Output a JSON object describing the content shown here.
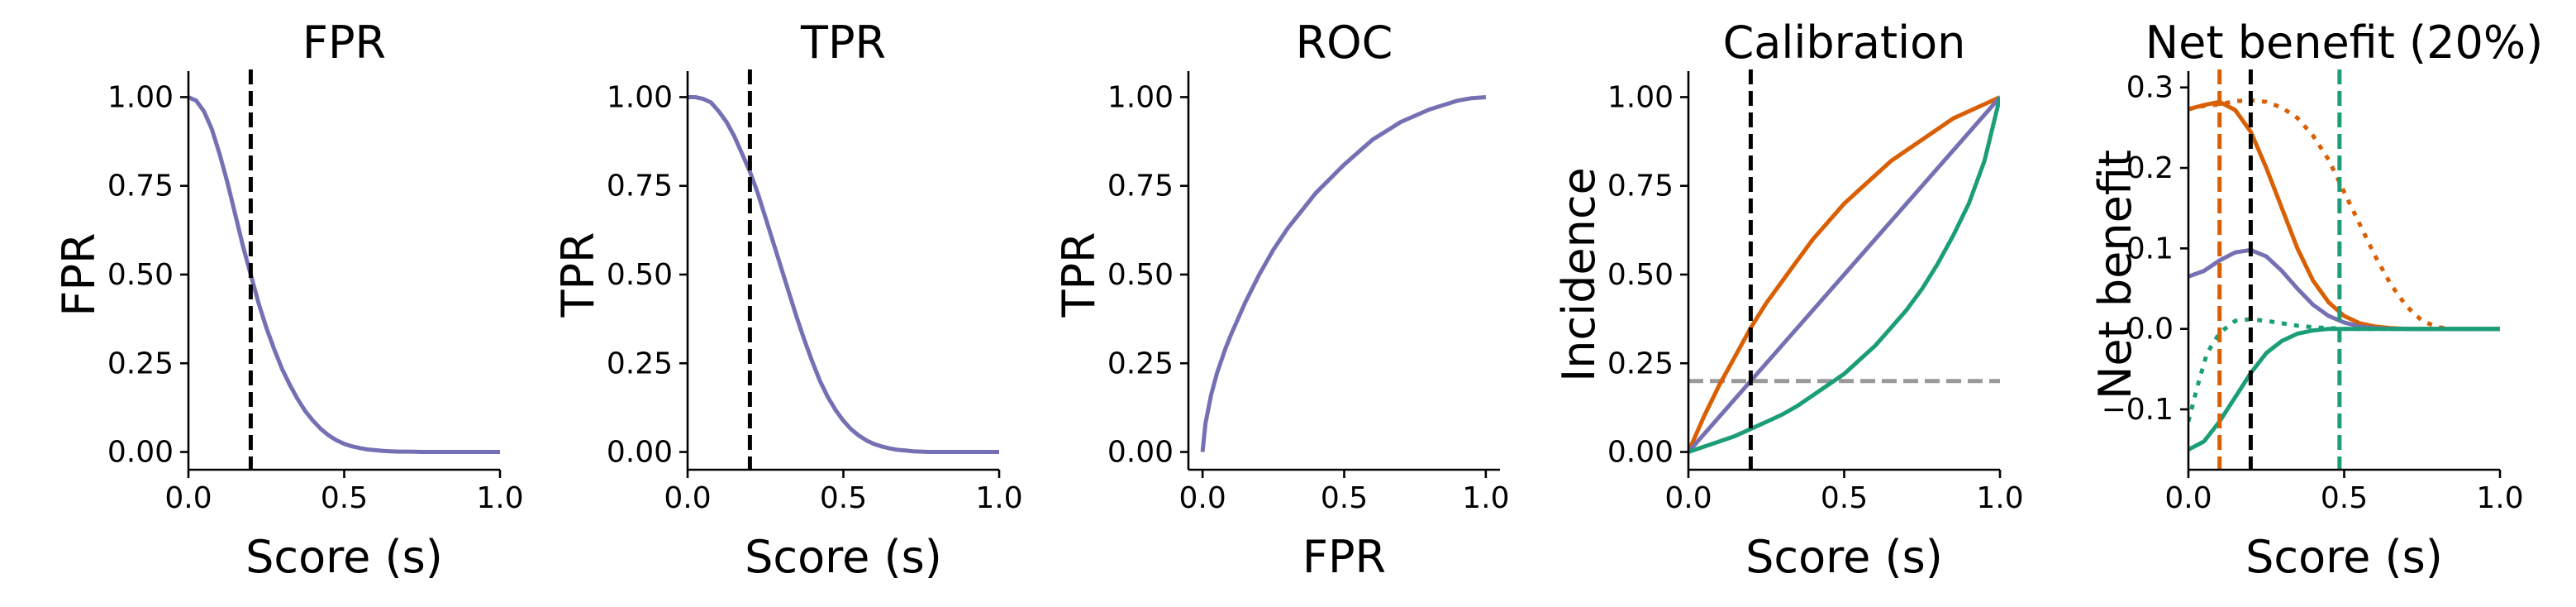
{
  "figure": {
    "colors": {
      "purple": "#7570b3",
      "orange": "#d95f02",
      "green": "#1b9e77",
      "black": "#000000",
      "gray": "#999999"
    }
  },
  "chart_data": [
    {
      "type": "line",
      "title": "FPR",
      "xlabel": "Score (s)",
      "ylabel": "FPR",
      "xlim": [
        0,
        1
      ],
      "ylim": [
        -0.05,
        1.05
      ],
      "xticks": [
        0,
        0.5,
        1
      ],
      "xtick_labels": [
        "0.0",
        "0.5",
        "1.0"
      ],
      "yticks": [
        0,
        0.25,
        0.5,
        0.75,
        1
      ],
      "ytick_labels": [
        "0.00",
        "0.25",
        "0.50",
        "0.75",
        "1.00"
      ],
      "series": [
        {
          "color": "#7570b3",
          "style": "solid",
          "x": [
            0,
            0.025,
            0.05,
            0.075,
            0.1,
            0.125,
            0.15,
            0.175,
            0.2,
            0.225,
            0.25,
            0.275,
            0.3,
            0.325,
            0.35,
            0.375,
            0.4,
            0.425,
            0.45,
            0.475,
            0.5,
            0.525,
            0.55,
            0.575,
            0.6,
            0.625,
            0.65,
            0.675,
            0.7,
            0.725,
            0.75,
            0.775,
            0.8,
            0.825,
            0.85,
            0.875,
            0.9,
            0.925,
            0.95,
            0.975,
            1
          ],
          "y": [
            1.0,
            0.99,
            0.96,
            0.91,
            0.84,
            0.76,
            0.67,
            0.58,
            0.5,
            0.42,
            0.35,
            0.29,
            0.235,
            0.19,
            0.15,
            0.115,
            0.088,
            0.065,
            0.047,
            0.033,
            0.023,
            0.016,
            0.011,
            0.007,
            0.005,
            0.003,
            0.002,
            0.001,
            0.001,
            0.0005,
            0,
            0,
            0,
            0,
            0,
            0,
            0,
            0,
            0,
            0,
            0
          ]
        }
      ],
      "vlines": [
        {
          "x": 0.2,
          "color": "#000000",
          "style": "dashed"
        }
      ]
    },
    {
      "type": "line",
      "title": "TPR",
      "xlabel": "Score (s)",
      "ylabel": "TPR",
      "xlim": [
        0,
        1
      ],
      "ylim": [
        -0.05,
        1.05
      ],
      "xticks": [
        0,
        0.5,
        1
      ],
      "xtick_labels": [
        "0.0",
        "0.5",
        "1.0"
      ],
      "yticks": [
        0,
        0.25,
        0.5,
        0.75,
        1
      ],
      "ytick_labels": [
        "0.00",
        "0.25",
        "0.50",
        "0.75",
        "1.00"
      ],
      "series": [
        {
          "color": "#7570b3",
          "style": "solid",
          "x": [
            0,
            0.025,
            0.05,
            0.075,
            0.1,
            0.125,
            0.15,
            0.175,
            0.2,
            0.225,
            0.25,
            0.275,
            0.3,
            0.325,
            0.35,
            0.375,
            0.4,
            0.425,
            0.45,
            0.475,
            0.5,
            0.525,
            0.55,
            0.575,
            0.6,
            0.625,
            0.65,
            0.675,
            0.7,
            0.725,
            0.75,
            0.775,
            0.8,
            0.825,
            0.85,
            0.875,
            0.9,
            0.925,
            0.95,
            0.975,
            1
          ],
          "y": [
            1.0,
            1.0,
            0.995,
            0.985,
            0.96,
            0.93,
            0.89,
            0.84,
            0.79,
            0.73,
            0.66,
            0.59,
            0.52,
            0.45,
            0.38,
            0.315,
            0.255,
            0.2,
            0.155,
            0.118,
            0.088,
            0.064,
            0.046,
            0.032,
            0.022,
            0.015,
            0.01,
            0.006,
            0.004,
            0.002,
            0.001,
            0,
            0,
            0,
            0,
            0,
            0,
            0,
            0,
            0,
            0
          ]
        }
      ],
      "vlines": [
        {
          "x": 0.2,
          "color": "#000000",
          "style": "dashed"
        }
      ]
    },
    {
      "type": "line",
      "title": "ROC",
      "xlabel": "FPR",
      "ylabel": "TPR",
      "xlim": [
        -0.05,
        1.05
      ],
      "ylim": [
        -0.05,
        1.05
      ],
      "xticks": [
        0,
        0.5,
        1
      ],
      "xtick_labels": [
        "0.0",
        "0.5",
        "1.0"
      ],
      "yticks": [
        0,
        0.25,
        0.5,
        0.75,
        1
      ],
      "ytick_labels": [
        "0.00",
        "0.25",
        "0.50",
        "0.75",
        "1.00"
      ],
      "series": [
        {
          "color": "#7570b3",
          "style": "solid",
          "x": [
            0,
            0.01,
            0.03,
            0.05,
            0.08,
            0.1,
            0.15,
            0.2,
            0.25,
            0.3,
            0.35,
            0.4,
            0.5,
            0.6,
            0.7,
            0.8,
            0.9,
            0.95,
            1.0
          ],
          "y": [
            0,
            0.08,
            0.16,
            0.22,
            0.29,
            0.33,
            0.42,
            0.5,
            0.57,
            0.63,
            0.68,
            0.73,
            0.81,
            0.88,
            0.93,
            0.965,
            0.99,
            0.997,
            1.0
          ]
        }
      ],
      "vlines": []
    },
    {
      "type": "line",
      "title": "Calibration",
      "xlabel": "Score (s)",
      "ylabel": "Incidence",
      "xlim": [
        0,
        1
      ],
      "ylim": [
        -0.05,
        1.05
      ],
      "xticks": [
        0,
        0.5,
        1
      ],
      "xtick_labels": [
        "0.0",
        "0.5",
        "1.0"
      ],
      "yticks": [
        0,
        0.25,
        0.5,
        0.75,
        1
      ],
      "ytick_labels": [
        "0.00",
        "0.25",
        "0.50",
        "0.75",
        "1.00"
      ],
      "series": [
        {
          "color": "#d95f02",
          "style": "solid",
          "x": [
            0,
            0.05,
            0.1,
            0.15,
            0.2,
            0.25,
            0.3,
            0.35,
            0.4,
            0.45,
            0.5,
            0.55,
            0.6,
            0.65,
            0.7,
            0.75,
            0.8,
            0.85,
            0.9,
            0.95,
            1
          ],
          "y": [
            0,
            0.1,
            0.19,
            0.27,
            0.35,
            0.42,
            0.48,
            0.54,
            0.6,
            0.65,
            0.7,
            0.74,
            0.78,
            0.82,
            0.85,
            0.88,
            0.91,
            0.94,
            0.96,
            0.98,
            1.0
          ]
        },
        {
          "color": "#7570b3",
          "style": "solid",
          "x": [
            0,
            1
          ],
          "y": [
            0,
            1
          ]
        },
        {
          "color": "#1b9e77",
          "style": "solid",
          "x": [
            0,
            0.05,
            0.1,
            0.15,
            0.2,
            0.25,
            0.3,
            0.35,
            0.4,
            0.45,
            0.5,
            0.55,
            0.6,
            0.65,
            0.7,
            0.75,
            0.8,
            0.85,
            0.9,
            0.95,
            1
          ],
          "y": [
            0,
            0.015,
            0.03,
            0.045,
            0.065,
            0.085,
            0.105,
            0.13,
            0.16,
            0.19,
            0.22,
            0.26,
            0.3,
            0.35,
            0.4,
            0.46,
            0.53,
            0.61,
            0.7,
            0.82,
            1.0
          ]
        }
      ],
      "hlines": [
        {
          "y": 0.2,
          "color": "#999999",
          "style": "dashed"
        }
      ],
      "vlines": [
        {
          "x": 0.2,
          "color": "#000000",
          "style": "dashed"
        }
      ]
    },
    {
      "type": "line",
      "title": "Net benefit (20%)",
      "xlabel": "Score (s)",
      "ylabel": "Net benefit",
      "xlim": [
        0,
        1
      ],
      "ylim": [
        -0.175,
        0.31
      ],
      "xticks": [
        0,
        0.5,
        1
      ],
      "xtick_labels": [
        "0.0",
        "0.5",
        "1.0"
      ],
      "yticks": [
        -0.1,
        0,
        0.1,
        0.2,
        0.3
      ],
      "ytick_labels": [
        "−0.1",
        "0.0",
        "0.1",
        "0.2",
        "0.3"
      ],
      "series": [
        {
          "color": "#d95f02",
          "style": "solid",
          "x": [
            0,
            0.05,
            0.1,
            0.15,
            0.2,
            0.25,
            0.3,
            0.35,
            0.4,
            0.45,
            0.5,
            0.55,
            0.6,
            0.65,
            0.7,
            0.75,
            0.8,
            0.85,
            0.9,
            0.95,
            1
          ],
          "y": [
            0.273,
            0.278,
            0.282,
            0.272,
            0.245,
            0.2,
            0.15,
            0.1,
            0.06,
            0.033,
            0.016,
            0.007,
            0.003,
            0.001,
            0,
            0,
            0,
            0,
            0,
            0,
            0
          ]
        },
        {
          "color": "#d95f02",
          "style": "dotted",
          "x": [
            0,
            0.05,
            0.1,
            0.15,
            0.2,
            0.25,
            0.3,
            0.35,
            0.4,
            0.45,
            0.5,
            0.55,
            0.6,
            0.65,
            0.7,
            0.75,
            0.8,
            0.85,
            0.9,
            0.95,
            1
          ],
          "y": [
            0.273,
            0.277,
            0.279,
            0.283,
            0.284,
            0.282,
            0.275,
            0.262,
            0.24,
            0.21,
            0.17,
            0.13,
            0.09,
            0.055,
            0.028,
            0.01,
            0.002,
            0,
            0,
            0,
            0
          ]
        },
        {
          "color": "#7570b3",
          "style": "solid",
          "x": [
            0,
            0.05,
            0.1,
            0.15,
            0.2,
            0.25,
            0.3,
            0.35,
            0.4,
            0.45,
            0.5,
            0.55,
            0.6,
            0.65,
            0.7,
            0.75,
            0.8,
            0.85,
            0.9,
            0.95,
            1
          ],
          "y": [
            0.065,
            0.072,
            0.085,
            0.095,
            0.098,
            0.09,
            0.072,
            0.05,
            0.03,
            0.016,
            0.008,
            0.003,
            0.001,
            0,
            0,
            0,
            0,
            0,
            0,
            0,
            0
          ]
        },
        {
          "color": "#1b9e77",
          "style": "solid",
          "x": [
            0,
            0.05,
            0.1,
            0.15,
            0.2,
            0.25,
            0.3,
            0.35,
            0.4,
            0.45,
            0.5,
            0.55,
            0.6,
            0.65,
            0.7,
            0.75,
            0.8,
            0.85,
            0.9,
            0.95,
            1
          ],
          "y": [
            -0.15,
            -0.14,
            -0.115,
            -0.085,
            -0.055,
            -0.03,
            -0.015,
            -0.006,
            -0.002,
            0,
            0,
            0,
            0,
            0,
            0,
            0,
            0,
            0,
            0,
            0,
            0
          ]
        },
        {
          "color": "#1b9e77",
          "style": "dotted",
          "x": [
            0,
            0.03,
            0.06,
            0.1,
            0.15,
            0.2,
            0.25,
            0.3,
            0.35,
            0.4,
            0.45,
            0.5,
            0.55,
            0.6,
            0.7,
            0.8,
            1
          ],
          "y": [
            -0.115,
            -0.07,
            -0.03,
            -0.005,
            0.01,
            0.012,
            0.01,
            0.007,
            0.004,
            0.002,
            0.001,
            0,
            0,
            0,
            0,
            0,
            0
          ]
        }
      ],
      "vlines": [
        {
          "x": 0.1,
          "color": "#d95f02",
          "style": "dashed"
        },
        {
          "x": 0.2,
          "color": "#000000",
          "style": "dashed"
        },
        {
          "x": 0.485,
          "color": "#1b9e77",
          "style": "dashed"
        }
      ]
    }
  ]
}
